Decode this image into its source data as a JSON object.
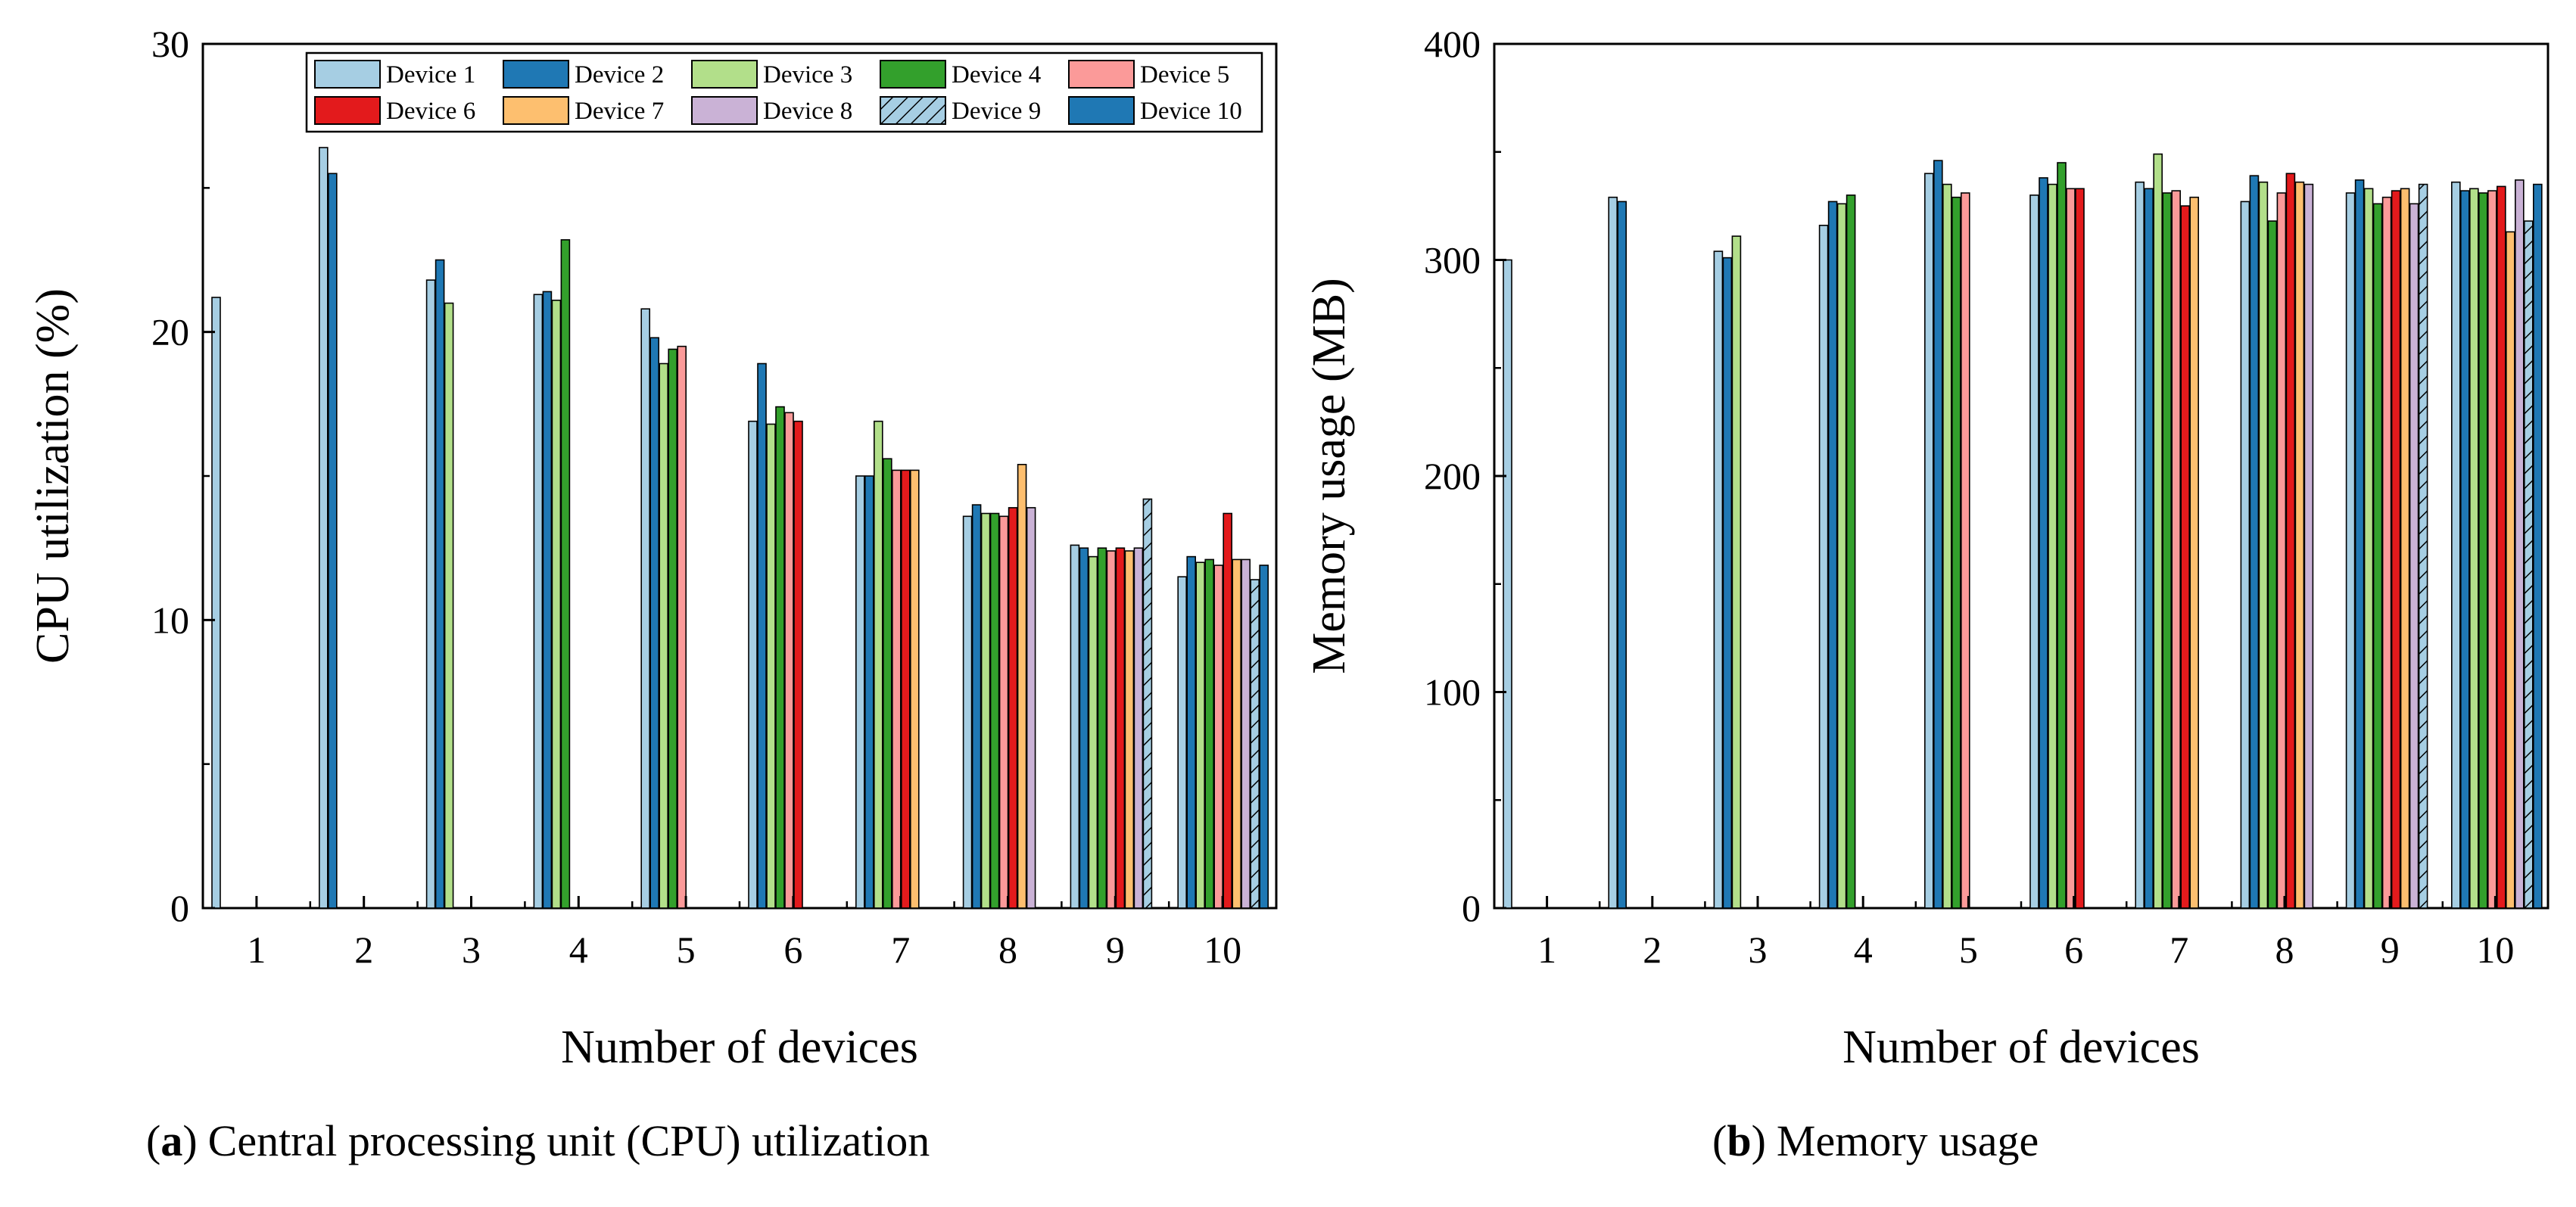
{
  "legend": {
    "labels": [
      "Device 1",
      "Device 2",
      "Device 3",
      "Device 4",
      "Device 5",
      "Device 6",
      "Device 7",
      "Device 8",
      "Device 9",
      "Device 10"
    ],
    "colors": [
      "#a6cee3",
      "#1f78b4",
      "#b2df8a",
      "#33a02c",
      "#fb9a99",
      "#e31a1c",
      "#fdbf6f",
      "#cab2d6",
      "#a6cee3",
      "#1f78b4"
    ],
    "hatched": [
      false,
      false,
      false,
      false,
      false,
      false,
      false,
      false,
      true,
      false
    ]
  },
  "chart_data": [
    {
      "type": "bar",
      "caption_letter": "a",
      "caption_text": "Central processing unit (CPU) utilization",
      "xlabel": "Number of devices",
      "ylabel": "CPU utilization (%)",
      "ylim": [
        0,
        30
      ],
      "yticks": [
        "0",
        "10",
        "20",
        "30"
      ],
      "categories": [
        "1",
        "2",
        "3",
        "4",
        "5",
        "6",
        "7",
        "8",
        "9",
        "10"
      ],
      "grid": false,
      "legend_position": "top-right",
      "values": [
        [
          21.2
        ],
        [
          26.4,
          25.5
        ],
        [
          21.8,
          22.5,
          21.0
        ],
        [
          21.3,
          21.4,
          21.1,
          23.2
        ],
        [
          20.8,
          19.8,
          18.9,
          19.4,
          19.5
        ],
        [
          16.9,
          18.9,
          16.8,
          17.4,
          17.2,
          16.9
        ],
        [
          15.0,
          15.0,
          16.9,
          15.6,
          15.2,
          15.2,
          15.2
        ],
        [
          13.6,
          14.0,
          13.7,
          13.7,
          13.6,
          13.9,
          15.4,
          13.9
        ],
        [
          12.6,
          12.5,
          12.2,
          12.5,
          12.4,
          12.5,
          12.4,
          12.5,
          14.2
        ],
        [
          11.5,
          12.2,
          12.0,
          12.1,
          11.9,
          13.7,
          12.1,
          12.1,
          11.4,
          11.9
        ]
      ]
    },
    {
      "type": "bar",
      "caption_letter": "b",
      "caption_text": "Memory usage",
      "xlabel": "Number of devices",
      "ylabel": "Memory usage (MB)",
      "ylim": [
        0,
        400
      ],
      "yticks": [
        "0",
        "100",
        "200",
        "300",
        "400"
      ],
      "categories": [
        "1",
        "2",
        "3",
        "4",
        "5",
        "6",
        "7",
        "8",
        "9",
        "10"
      ],
      "grid": false,
      "values": [
        [
          300
        ],
        [
          329,
          327
        ],
        [
          304,
          301,
          311
        ],
        [
          316,
          327,
          326,
          330
        ],
        [
          340,
          346,
          335,
          329,
          331
        ],
        [
          330,
          338,
          335,
          345,
          333,
          333
        ],
        [
          336,
          333,
          349,
          331,
          332,
          325,
          329
        ],
        [
          327,
          339,
          336,
          318,
          331,
          340,
          336,
          335
        ],
        [
          331,
          337,
          333,
          326,
          329,
          332,
          333,
          326,
          335
        ],
        [
          336,
          332,
          333,
          331,
          332,
          334,
          313,
          337,
          318,
          335
        ]
      ]
    }
  ]
}
